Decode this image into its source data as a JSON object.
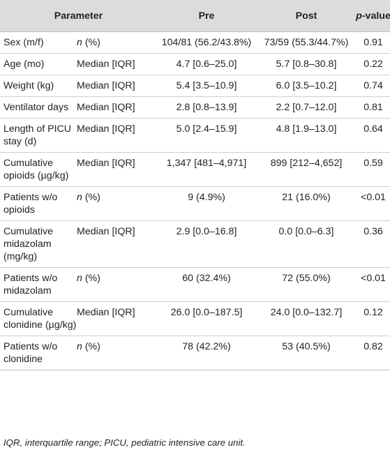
{
  "header": {
    "parameter": "Parameter",
    "pre": "Pre",
    "post": "Post",
    "pvalue_italic": "p",
    "pvalue_rest": "-value"
  },
  "rows": [
    {
      "parameter": "Sex (m/f)",
      "stat": "n (%)",
      "stat_italic": "n",
      "stat_rest": " (%)",
      "pre": "104/81 (56.2/43.8%)",
      "post": "73/59 (55.3/44.7%)",
      "p": "0.91"
    },
    {
      "parameter": "Age (mo)",
      "stat": "Median [IQR]",
      "pre": "4.7 [0.6–25.0]",
      "post": "5.7 [0.8–30.8]",
      "p": "0.22"
    },
    {
      "parameter": "Weight (kg)",
      "stat": "Median [IQR]",
      "pre": "5.4 [3.5–10.9]",
      "post": "6.0 [3.5–10.2]",
      "p": "0.74"
    },
    {
      "parameter": "Ventilator days",
      "stat": "Median [IQR]",
      "pre": "2.8 [0.8–13.9]",
      "post": "2.2 [0.7–12.0]",
      "p": "0.81"
    },
    {
      "parameter": "Length of PICU stay (d)",
      "stat": "Median [IQR]",
      "pre": "5.0 [2.4–15.9]",
      "post": "4.8 [1.9–13.0]",
      "p": "0.64"
    },
    {
      "parameter": "Cumulative opioids (µg/kg)",
      "stat": "Median [IQR]",
      "pre": "1,347 [481–4,971]",
      "post": "899 [212–4,652]",
      "p": "0.59"
    },
    {
      "parameter": "Patients w/o opioids",
      "stat": "n (%)",
      "stat_italic": "n",
      "stat_rest": " (%)",
      "pre": "9 (4.9%)",
      "post": "21 (16.0%)",
      "p": "<0.01"
    },
    {
      "parameter": "Cumulative midazolam (mg/kg)",
      "stat": "Median [IQR]",
      "pre": "2.9 [0.0–16.8]",
      "post": "0.0 [0.0–6.3]",
      "p": "0.36"
    },
    {
      "parameter": "Patients w/o midazolam",
      "stat": "n (%)",
      "stat_italic": "n",
      "stat_rest": " (%)",
      "pre": "60 (32.4%)",
      "post": "72 (55.0%)",
      "p": "<0.01"
    },
    {
      "parameter": "Cumulative clonidine (µg/kg)",
      "stat": "Median [IQR]",
      "pre": "26.0 [0.0–187.5]",
      "post": "24.0 [0.0–132.7]",
      "p": "0.12"
    },
    {
      "parameter": "Patients w/o clonidine",
      "stat": "n (%)",
      "stat_italic": "n",
      "stat_rest": " (%)",
      "pre": "78 (42.2%)",
      "post": "53 (40.5%)",
      "p": "0.82"
    }
  ],
  "footnote": "IQR, interquartile range; PICU, pediatric intensive care unit."
}
